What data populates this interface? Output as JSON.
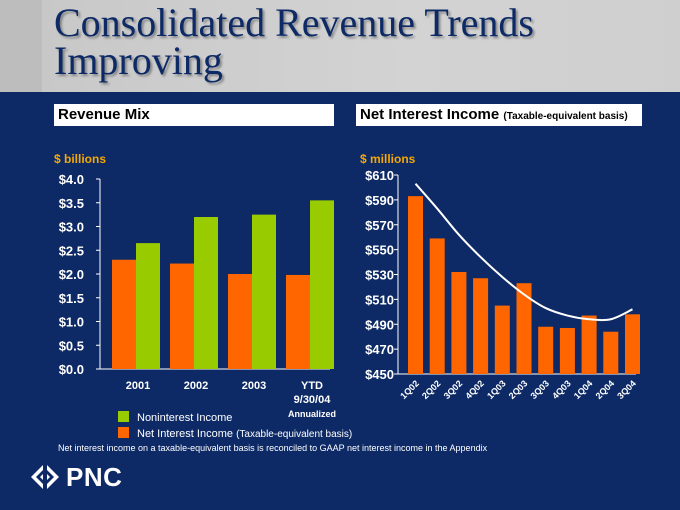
{
  "title": "Consolidated Revenue Trends Improving",
  "footnote": "Net interest income on a taxable-equivalent basis is reconciled to GAAP net interest income in the Appendix",
  "logo_text": "PNC",
  "colors": {
    "background": "#0d2a66",
    "green": "#99cc00",
    "orange": "#ff6600",
    "unit_label": "#f5a800"
  },
  "chart_data": [
    {
      "type": "bar",
      "title": "Revenue Mix",
      "unit_label": "$ billions",
      "categories": [
        "2001",
        "2002",
        "2003",
        "YTD"
      ],
      "category_sublabels": [
        "",
        "",
        "",
        "9/30/04"
      ],
      "annotation": "Annualized",
      "ylim": [
        0,
        4.0
      ],
      "y_ticks": [
        "$4.0",
        "$3.5",
        "$3.0",
        "$2.5",
        "$2.0",
        "$1.5",
        "$1.0",
        "$0.5",
        "$0.0"
      ],
      "y_tick_values": [
        4.0,
        3.5,
        3.0,
        2.5,
        2.0,
        1.5,
        1.0,
        0.5,
        0.0
      ],
      "series": [
        {
          "name": "Net Interest Income",
          "name_suffix": "(Taxable-equivalent basis)",
          "color": "#ff6600",
          "values": [
            2.3,
            2.22,
            2.0,
            1.98
          ]
        },
        {
          "name": "Noninterest Income",
          "color": "#99cc00",
          "values": [
            2.65,
            3.2,
            3.25,
            3.55
          ]
        }
      ],
      "legend": [
        {
          "label": "Noninterest Income",
          "suffix": "",
          "color": "#99cc00"
        },
        {
          "label": "Net Interest Income",
          "suffix": "(Taxable-equivalent basis)",
          "color": "#ff6600"
        }
      ]
    },
    {
      "type": "bar",
      "title": "Net Interest Income",
      "subtitle": "(Taxable-equivalent basis)",
      "unit_label": "$ millions",
      "categories": [
        "1Q02",
        "2Q02",
        "3Q02",
        "4Q02",
        "1Q03",
        "2Q03",
        "3Q03",
        "4Q03",
        "1Q04",
        "2Q04",
        "3Q04"
      ],
      "ylim": [
        450,
        610
      ],
      "y_ticks": [
        "$610",
        "$590",
        "$570",
        "$550",
        "$530",
        "$510",
        "$490",
        "$470",
        "$450"
      ],
      "y_tick_values": [
        610,
        590,
        570,
        550,
        530,
        510,
        490,
        470,
        450
      ],
      "series": [
        {
          "name": "Net Interest Income",
          "color": "#ff6600",
          "values": [
            593,
            559,
            532,
            527,
            505,
            523,
            488,
            487,
            497,
            484,
            498
          ]
        }
      ],
      "trendline": {
        "color": "#ffffff",
        "values": [
          603,
          583,
          562,
          544,
          528,
          514,
          503,
          497,
          494,
          494,
          502
        ]
      }
    }
  ]
}
